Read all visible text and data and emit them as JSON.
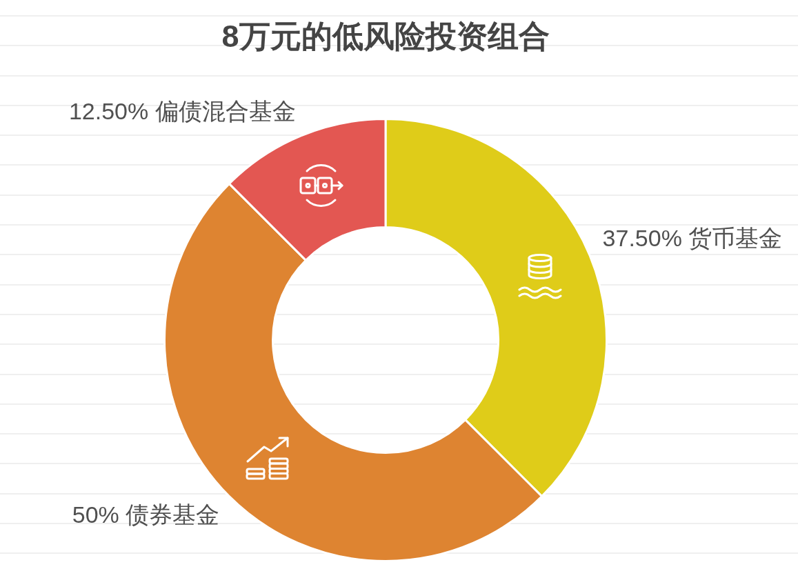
{
  "chart_data": {
    "type": "donut",
    "title": "8万元的低风险投资组合",
    "categories": [
      "货币基金",
      "债券基金",
      "偏债混合基金"
    ],
    "values": [
      37.5,
      50,
      12.5
    ],
    "colors": [
      "#dfcc19",
      "#de8431",
      "#e35752"
    ],
    "value_labels": [
      "37.50%",
      "50%",
      "12.50%"
    ]
  }
}
